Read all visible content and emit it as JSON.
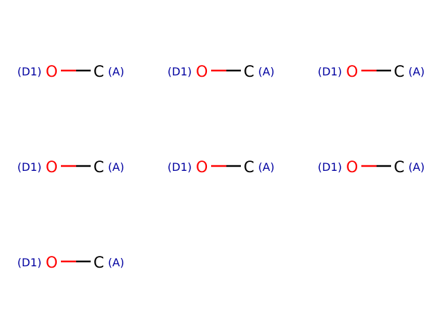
{
  "colors": {
    "oxygen": "#ff0000",
    "carbon": "#000000",
    "tag": "#0000a0",
    "background": "#ffffff"
  },
  "molecules": [
    {
      "left_tag": "(D1)",
      "atom1": "O",
      "atom2": "C",
      "right_tag": "(A)"
    },
    {
      "left_tag": "(D1)",
      "atom1": "O",
      "atom2": "C",
      "right_tag": "(A)"
    },
    {
      "left_tag": "(D1)",
      "atom1": "O",
      "atom2": "C",
      "right_tag": "(A)"
    },
    {
      "left_tag": "(D1)",
      "atom1": "O",
      "atom2": "C",
      "right_tag": "(A)"
    },
    {
      "left_tag": "(D1)",
      "atom1": "O",
      "atom2": "C",
      "right_tag": "(A)"
    },
    {
      "left_tag": "(D1)",
      "atom1": "O",
      "atom2": "C",
      "right_tag": "(A)"
    },
    {
      "left_tag": "(D1)",
      "atom1": "O",
      "atom2": "C",
      "right_tag": "(A)"
    }
  ]
}
